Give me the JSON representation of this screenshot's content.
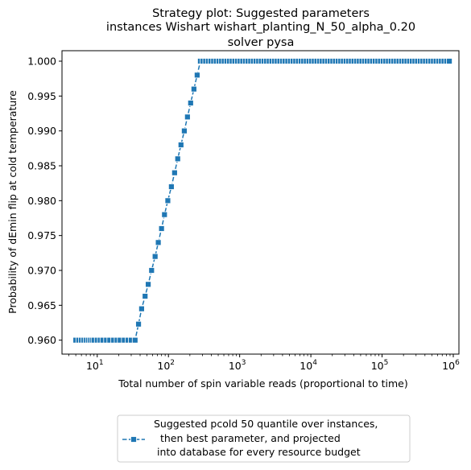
{
  "chart_data": {
    "type": "line",
    "title_lines": [
      "Strategy plot: Suggested parameters",
      "instances Wishart wishart_planting_N_50_alpha_0.20",
      "solver pysa"
    ],
    "xlabel": "Total number of spin variable reads (proportional to time)",
    "ylabel": "Probability of dEmin flip at cold temperature",
    "x_scale": "log",
    "xlim": [
      3.2,
      1200000
    ],
    "ylim": [
      0.958,
      1.0015
    ],
    "x_ticks": [
      {
        "value": 10,
        "base": "10",
        "exp": "1"
      },
      {
        "value": 100,
        "base": "10",
        "exp": "2"
      },
      {
        "value": 1000,
        "base": "10",
        "exp": "3"
      },
      {
        "value": 10000,
        "base": "10",
        "exp": "4"
      },
      {
        "value": 100000,
        "base": "10",
        "exp": "5"
      },
      {
        "value": 1000000,
        "base": "10",
        "exp": "6"
      }
    ],
    "y_ticks": [
      "0.960",
      "0.965",
      "0.970",
      "0.975",
      "0.980",
      "0.985",
      "0.990",
      "0.995",
      "1.000"
    ],
    "grid": false,
    "legend_position": "below plot",
    "series": [
      {
        "name_lines": [
          "Suggested pcold 50 quantile over instances,",
          "  then best parameter, and projected",
          " into database for every resource budget"
        ],
        "color": "#1f77b4",
        "marker": "square",
        "linestyle": "dashed",
        "points": [
          [
            5,
            0.96
          ],
          [
            5.5,
            0.96
          ],
          [
            6,
            0.96
          ],
          [
            6.5,
            0.96
          ],
          [
            7,
            0.96
          ],
          [
            7.5,
            0.96
          ],
          [
            8,
            0.96
          ],
          [
            8.5,
            0.96
          ],
          [
            9,
            0.96
          ],
          [
            10,
            0.96
          ],
          [
            11,
            0.96
          ],
          [
            12,
            0.96
          ],
          [
            13.5,
            0.96
          ],
          [
            15,
            0.96
          ],
          [
            17,
            0.96
          ],
          [
            19,
            0.96
          ],
          [
            21,
            0.96
          ],
          [
            24,
            0.96
          ],
          [
            27,
            0.96
          ],
          [
            30,
            0.96
          ],
          [
            34,
            0.96
          ],
          [
            38,
            0.9623
          ],
          [
            42,
            0.9645
          ],
          [
            47,
            0.9663
          ],
          [
            52,
            0.968
          ],
          [
            58,
            0.97
          ],
          [
            65,
            0.972
          ],
          [
            72,
            0.974
          ],
          [
            80,
            0.976
          ],
          [
            88,
            0.978
          ],
          [
            98,
            0.98
          ],
          [
            110,
            0.982
          ],
          [
            122,
            0.984
          ],
          [
            135,
            0.986
          ],
          [
            150,
            0.988
          ],
          [
            167,
            0.99
          ],
          [
            185,
            0.992
          ],
          [
            205,
            0.994
          ],
          [
            228,
            0.996
          ],
          [
            253,
            0.998
          ],
          [
            281,
            1.0
          ]
        ],
        "plateau": {
          "y": 1.0,
          "x_start": 281,
          "x_end": 880000,
          "count": 95
        }
      }
    ]
  }
}
